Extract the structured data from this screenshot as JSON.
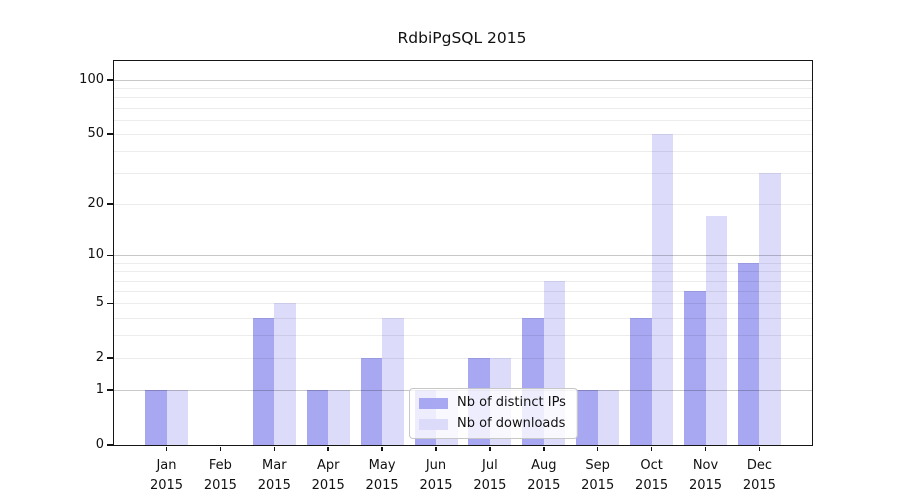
{
  "title": "RdbiPgSQL 2015",
  "chart_data": {
    "type": "bar",
    "title": "RdbiPgSQL 2015",
    "categories": [
      "Jan 2015",
      "Feb 2015",
      "Mar 2015",
      "Apr 2015",
      "May 2015",
      "Jun 2015",
      "Jul 2015",
      "Aug 2015",
      "Sep 2015",
      "Oct 2015",
      "Nov 2015",
      "Dec 2015"
    ],
    "series": [
      {
        "name": "Nb of distinct IPs",
        "color": "#a7a7f2",
        "values": [
          1,
          0,
          4,
          1,
          2,
          1,
          2,
          4,
          1,
          4,
          6,
          9
        ]
      },
      {
        "name": "Nb of downloads",
        "color": "#dcdcfa",
        "values": [
          1,
          0,
          5,
          1,
          4,
          1,
          2,
          7,
          1,
          50,
          17,
          30
        ]
      }
    ],
    "xlabel": "",
    "ylabel": "",
    "yscale": "log1p",
    "yticks": [
      0,
      1,
      2,
      5,
      10,
      20,
      50,
      100
    ],
    "grid_major": [
      1,
      10,
      100
    ],
    "grid_minor": [
      2,
      3,
      4,
      5,
      6,
      7,
      8,
      9,
      20,
      30,
      40,
      50,
      60,
      70,
      80,
      90
    ],
    "ylim": [
      0,
      127
    ],
    "grid": "on",
    "legend_position": "lower-center",
    "bar_group": "side-by-side"
  }
}
